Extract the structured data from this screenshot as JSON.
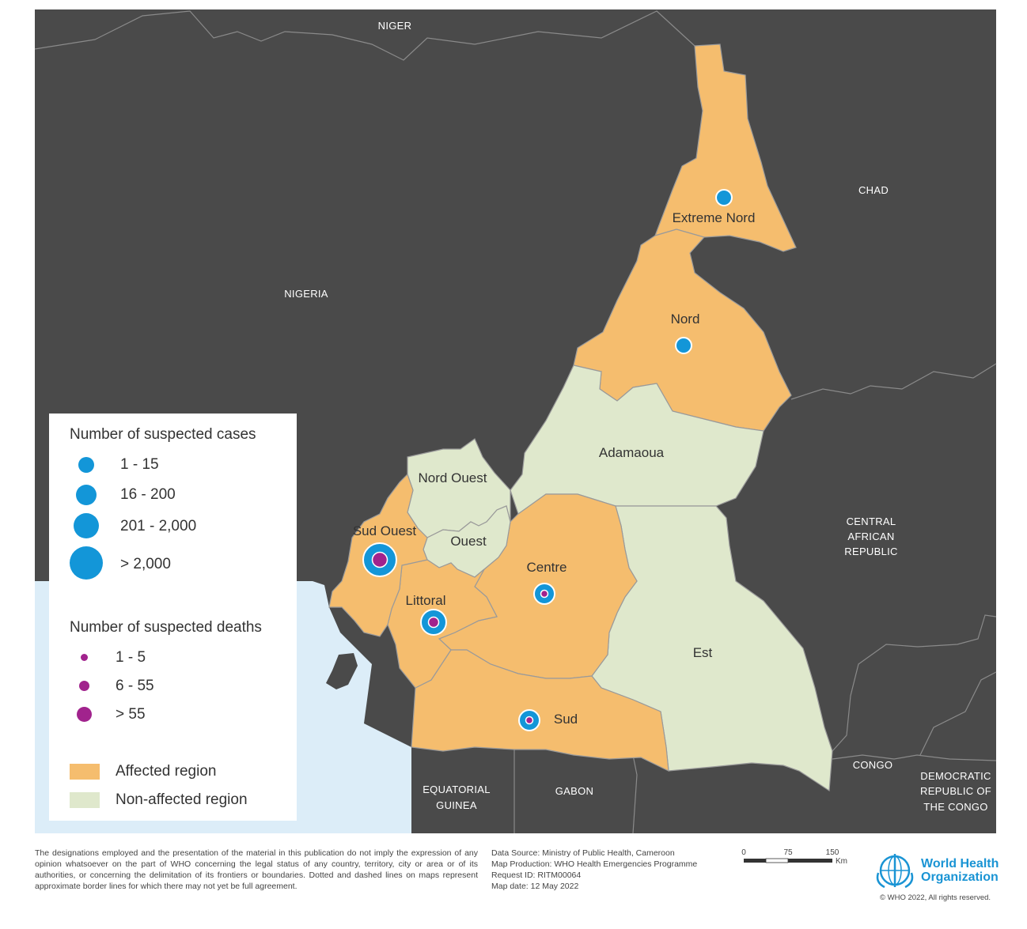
{
  "colors": {
    "water": "#dcedf8",
    "land": "#4a4a4a",
    "affected": "#f5bd6e",
    "non_affected": "#dfe8cc",
    "case_circle": "#1396d8",
    "death_circle": "#a1238d"
  },
  "countries": [
    {
      "key": "niger",
      "label": "NIGER"
    },
    {
      "key": "chad",
      "label": "CHAD"
    },
    {
      "key": "nigeria",
      "label": "NIGERIA"
    },
    {
      "key": "car_1",
      "label": "CENTRAL"
    },
    {
      "key": "car_2",
      "label": "AFRICAN"
    },
    {
      "key": "car_3",
      "label": "REPUBLIC"
    },
    {
      "key": "congo",
      "label": "CONGO"
    },
    {
      "key": "drc_1",
      "label": "DEMOCRATIC"
    },
    {
      "key": "drc_2",
      "label": "REPUBLIC OF"
    },
    {
      "key": "drc_3",
      "label": "THE CONGO"
    },
    {
      "key": "eqg_1",
      "label": "EQUATORIAL"
    },
    {
      "key": "eqg_2",
      "label": "GUINEA"
    },
    {
      "key": "gabon",
      "label": "GABON"
    }
  ],
  "regions": [
    {
      "name": "Extreme Nord",
      "status": "affected",
      "cases_class": "1 - 15",
      "deaths_class": null
    },
    {
      "name": "Nord",
      "status": "affected",
      "cases_class": "1 - 15",
      "deaths_class": null
    },
    {
      "name": "Adamaoua",
      "status": "non-affected",
      "cases_class": null,
      "deaths_class": null
    },
    {
      "name": "Nord Ouest",
      "status": "non-affected",
      "cases_class": null,
      "deaths_class": null
    },
    {
      "name": "Ouest",
      "status": "non-affected",
      "cases_class": null,
      "deaths_class": null
    },
    {
      "name": "Sud Ouest",
      "status": "affected",
      "cases_class": "> 2,000",
      "deaths_class": "> 55"
    },
    {
      "name": "Littoral",
      "status": "affected",
      "cases_class": "201 - 2,000",
      "deaths_class": "6 - 55"
    },
    {
      "name": "Centre",
      "status": "affected",
      "cases_class": "16 - 200",
      "deaths_class": "1 - 5"
    },
    {
      "name": "Sud",
      "status": "affected",
      "cases_class": "16 - 200",
      "deaths_class": "1 - 5"
    },
    {
      "name": "Est",
      "status": "non-affected",
      "cases_class": null,
      "deaths_class": null
    }
  ],
  "legend": {
    "cases_title": "Number of suspected cases",
    "cases_classes": [
      "1 - 15",
      "16 - 200",
      "201 - 2,000",
      "> 2,000"
    ],
    "deaths_title": "Number of suspected deaths",
    "deaths_classes": [
      "1 - 5",
      "6 - 55",
      "> 55"
    ],
    "affected_label": "Affected region",
    "non_affected_label": "Non-affected region"
  },
  "footer": {
    "disclaimer": "The designations employed and the presentation of the material in this publication do not imply the expression of any opinion whatsoever on the part of WHO concerning the legal status of any country, territory, city or area or of its authorities, or concerning the delimitation of its frontiers or boundaries. Dotted and dashed lines on maps represent approximate border lines for which there may not yet be full agreement.",
    "data_source": "Data Source: Ministry of Public Health, Cameroon",
    "map_production": "Map Production: WHO Health Emergencies Programme",
    "request_id": "Request ID: RITM00064",
    "map_date": "Map date: 12 May 2022",
    "scale_ticks": [
      "0",
      "75",
      "150"
    ],
    "scale_unit": "Km",
    "who_line1": "World Health",
    "who_line2": "Organization",
    "copyright": "© WHO 2022, All rights reserved."
  }
}
